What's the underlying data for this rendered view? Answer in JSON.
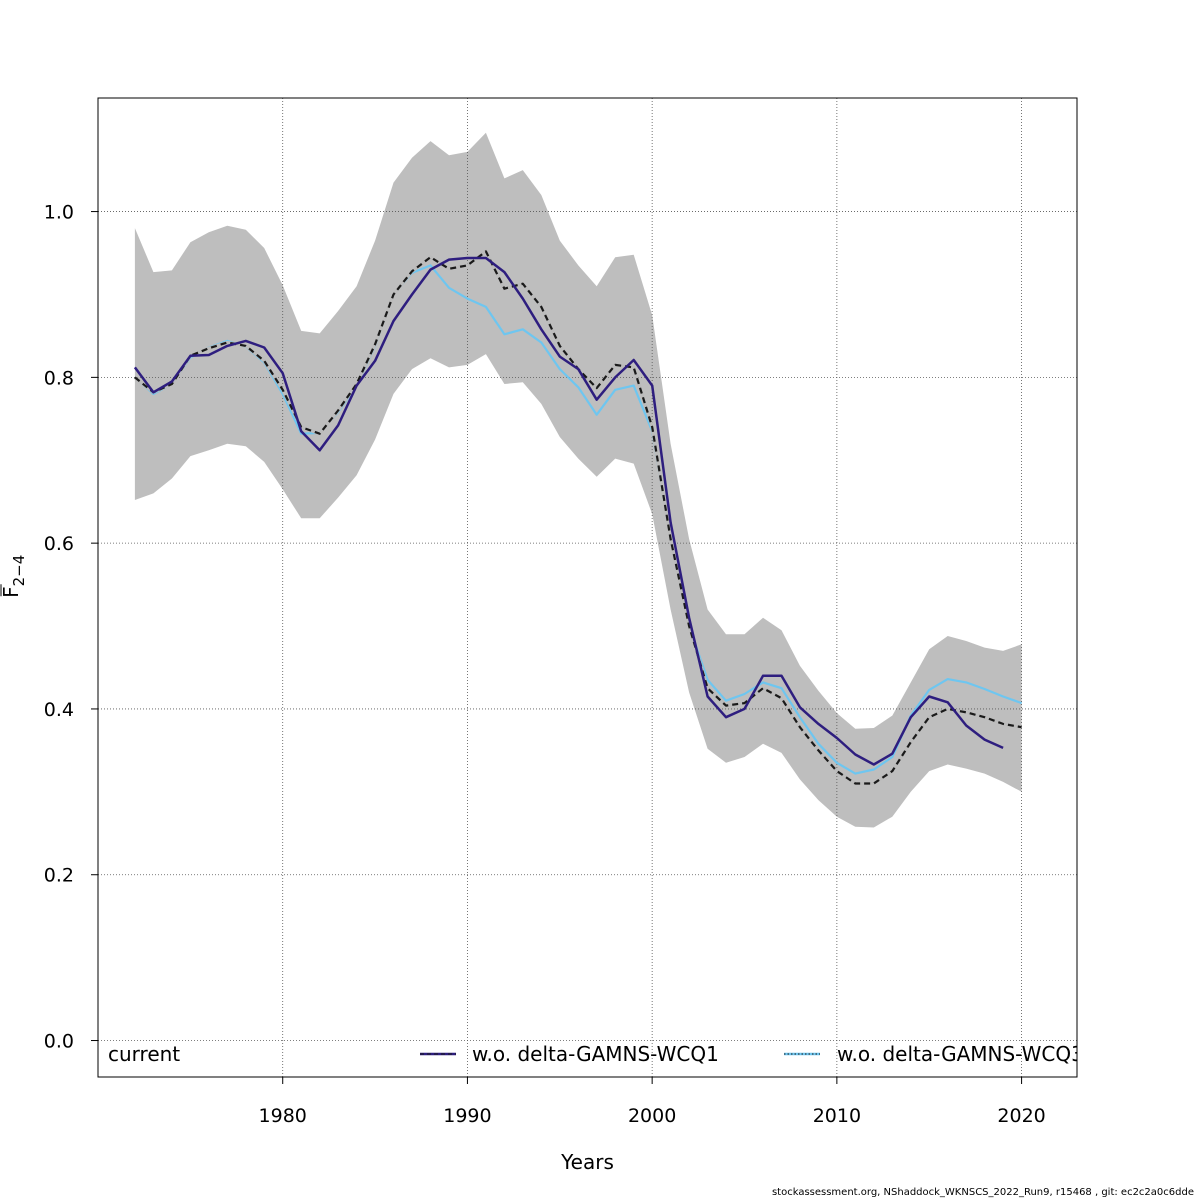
{
  "footer_text": "stockassessment.org, NShaddock_WKNSCS_2022_Run9, r15468 , git: ec2c2a0c6dde",
  "chart_data": {
    "type": "line",
    "xlabel": "Years",
    "ylabel_main": "F",
    "ylabel_sub": "2−4",
    "xlim": [
      1970,
      2023
    ],
    "ylim": [
      -0.044,
      1.137
    ],
    "xticks": [
      1980,
      1990,
      2000,
      2010,
      2020
    ],
    "yticks": [
      0.0,
      0.2,
      0.4,
      0.6,
      0.8,
      1.0
    ],
    "ytick_labels": [
      "0.0",
      "0.2",
      "0.4",
      "0.6",
      "0.8",
      "1.0"
    ],
    "grid": true,
    "legend_position": "bottom",
    "legend": [
      {
        "label": "current",
        "color": "#000000",
        "style": "none"
      },
      {
        "label": "w.o. delta-GAMNS-WCQ1",
        "color": "#2e1e7f",
        "style": "solid-dashed"
      },
      {
        "label": "w.o. delta-GAMNS-WCQ3",
        "color": "#6ec6f0",
        "style": "solid-dotted"
      }
    ],
    "band": {
      "name": "current confidence interval",
      "color": "#bebebe",
      "x": [
        1972,
        1973,
        1974,
        1975,
        1976,
        1977,
        1978,
        1979,
        1980,
        1981,
        1982,
        1983,
        1984,
        1985,
        1986,
        1987,
        1988,
        1989,
        1990,
        1991,
        1992,
        1993,
        1994,
        1995,
        1996,
        1997,
        1998,
        1999,
        2000,
        2001,
        2002,
        2003,
        2004,
        2005,
        2006,
        2007,
        2008,
        2009,
        2010,
        2011,
        2012,
        2013,
        2014,
        2015,
        2016,
        2017,
        2018,
        2019,
        2020
      ],
      "upper": [
        0.98,
        0.927,
        0.929,
        0.963,
        0.975,
        0.983,
        0.978,
        0.956,
        0.911,
        0.856,
        0.853,
        0.88,
        0.91,
        0.965,
        1.035,
        1.065,
        1.085,
        1.068,
        1.072,
        1.095,
        1.04,
        1.05,
        1.02,
        0.965,
        0.935,
        0.91,
        0.945,
        0.948,
        0.875,
        0.72,
        0.605,
        0.52,
        0.49,
        0.49,
        0.51,
        0.495,
        0.452,
        0.422,
        0.395,
        0.376,
        0.377,
        0.392,
        0.432,
        0.472,
        0.488,
        0.482,
        0.474,
        0.47,
        0.478
      ],
      "lower": [
        0.652,
        0.66,
        0.678,
        0.705,
        0.712,
        0.72,
        0.717,
        0.698,
        0.665,
        0.63,
        0.63,
        0.655,
        0.682,
        0.725,
        0.78,
        0.81,
        0.823,
        0.812,
        0.815,
        0.828,
        0.792,
        0.794,
        0.768,
        0.728,
        0.702,
        0.68,
        0.702,
        0.696,
        0.635,
        0.52,
        0.42,
        0.352,
        0.335,
        0.342,
        0.358,
        0.347,
        0.315,
        0.29,
        0.27,
        0.258,
        0.257,
        0.27,
        0.3,
        0.325,
        0.333,
        0.328,
        0.322,
        0.312,
        0.3
      ]
    },
    "series": [
      {
        "name": "current",
        "color": "#1a1a1a",
        "dash": "6,4",
        "x": [
          1972,
          1973,
          1974,
          1975,
          1976,
          1977,
          1978,
          1979,
          1980,
          1981,
          1982,
          1983,
          1984,
          1985,
          1986,
          1987,
          1988,
          1989,
          1990,
          1991,
          1992,
          1993,
          1994,
          1995,
          1996,
          1997,
          1998,
          1999,
          2000,
          2001,
          2002,
          2003,
          2004,
          2005,
          2006,
          2007,
          2008,
          2009,
          2010,
          2011,
          2012,
          2013,
          2014,
          2015,
          2016,
          2017,
          2018,
          2019,
          2020
        ],
        "values": [
          0.8,
          0.782,
          0.792,
          0.826,
          0.835,
          0.842,
          0.838,
          0.82,
          0.785,
          0.74,
          0.732,
          0.76,
          0.792,
          0.84,
          0.9,
          0.928,
          0.945,
          0.931,
          0.935,
          0.952,
          0.907,
          0.913,
          0.885,
          0.838,
          0.81,
          0.787,
          0.815,
          0.812,
          0.74,
          0.605,
          0.5,
          0.425,
          0.404,
          0.407,
          0.425,
          0.413,
          0.378,
          0.35,
          0.325,
          0.31,
          0.31,
          0.325,
          0.36,
          0.39,
          0.4,
          0.396,
          0.39,
          0.382,
          0.378
        ]
      },
      {
        "name": "w.o. delta-GAMNS-WCQ1",
        "color": "#2e1e7f",
        "dash": "",
        "x": [
          1972,
          1973,
          1974,
          1975,
          1976,
          1977,
          1978,
          1979,
          1980,
          1981,
          1982,
          1983,
          1984,
          1985,
          1986,
          1987,
          1988,
          1989,
          1990,
          1991,
          1992,
          1993,
          1994,
          1995,
          1996,
          1997,
          1998,
          1999,
          2000,
          2001,
          2002,
          2003,
          2004,
          2005,
          2006,
          2007,
          2008,
          2009,
          2010,
          2011,
          2012,
          2013,
          2014,
          2015,
          2016,
          2017,
          2018,
          2019
        ],
        "values": [
          0.812,
          0.782,
          0.795,
          0.826,
          0.827,
          0.838,
          0.844,
          0.836,
          0.805,
          0.735,
          0.712,
          0.742,
          0.79,
          0.82,
          0.868,
          0.9,
          0.93,
          0.942,
          0.944,
          0.944,
          0.927,
          0.895,
          0.858,
          0.825,
          0.81,
          0.773,
          0.8,
          0.821,
          0.79,
          0.625,
          0.51,
          0.415,
          0.39,
          0.4,
          0.44,
          0.44,
          0.402,
          0.382,
          0.365,
          0.345,
          0.333,
          0.346,
          0.39,
          0.415,
          0.408,
          0.38,
          0.363,
          0.353
        ]
      },
      {
        "name": "w.o. delta-GAMNS-WCQ3",
        "color": "#6ec6f0",
        "dash": "",
        "x": [
          1972,
          1973,
          1974,
          1975,
          1976,
          1977,
          1978,
          1979,
          1980,
          1981,
          1982,
          1983,
          1984,
          1985,
          1986,
          1987,
          1988,
          1989,
          1990,
          1991,
          1992,
          1993,
          1994,
          1995,
          1996,
          1997,
          1998,
          1999,
          2000,
          2001,
          2002,
          2003,
          2004,
          2005,
          2006,
          2007,
          2008,
          2009,
          2010,
          2011,
          2012,
          2013,
          2014,
          2015,
          2016,
          2017,
          2018,
          2019,
          2020
        ],
        "values": [
          0.8,
          0.78,
          0.792,
          0.824,
          0.836,
          0.844,
          0.837,
          0.818,
          0.78,
          0.732,
          0.733,
          0.758,
          0.79,
          0.838,
          0.9,
          0.926,
          0.935,
          0.908,
          0.895,
          0.885,
          0.852,
          0.858,
          0.842,
          0.81,
          0.788,
          0.755,
          0.785,
          0.79,
          0.735,
          0.605,
          0.5,
          0.435,
          0.41,
          0.418,
          0.432,
          0.425,
          0.39,
          0.358,
          0.335,
          0.322,
          0.327,
          0.342,
          0.392,
          0.423,
          0.436,
          0.432,
          0.424,
          0.415,
          0.407
        ]
      }
    ]
  }
}
